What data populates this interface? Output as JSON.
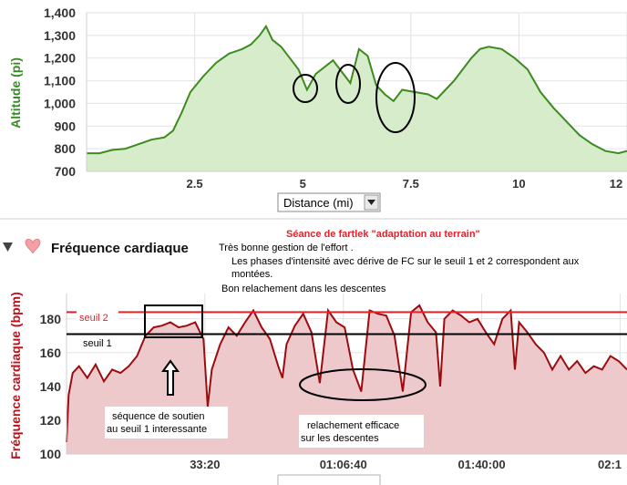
{
  "colors": {
    "altitude_line": "#3d8b1e",
    "altitude_fill": "#d6eccb",
    "hr_line": "#9e0b0f",
    "hr_fill": "#edc9cb",
    "seuil2": "#e8202a",
    "seuil1": "#000000",
    "grid": "#e2e2e2"
  },
  "section": {
    "title": "Fréquence cardiaque",
    "collapse_icon": "triangle-down-icon",
    "heart_icon": "heart-icon"
  },
  "dropdown": {
    "label": "Distance (mi)",
    "icon": "dropdown-arrow-icon"
  },
  "notes": {
    "title": "Séance de fartlek  \"adaptation au terrain\"",
    "line1": "Très bonne gestion de l'effort .",
    "line2": "Les phases d'intensité avec dérive de FC sur le seuil 1 et 2 correspondent aux",
    "line3": "montées.",
    "line4": "Bon relachement dans les descentes"
  },
  "annotations": {
    "soutien_line1": "séquence de soutien",
    "soutien_line2": "au seuil 1 interessante",
    "relach_line1": "relachement efficace",
    "relach_line2": "sur les descentes"
  },
  "chart_data": [
    {
      "type": "area",
      "ylabel": "Altitude (pi)",
      "xlabel": "Distance (mi)",
      "xlim": [
        0,
        12.5
      ],
      "ylim": [
        700,
        1400
      ],
      "yticks": [
        "700",
        "800",
        "900",
        "1,000",
        "1,100",
        "1,200",
        "1,300",
        "1,400"
      ],
      "xticks": [
        "2.5",
        "5",
        "7.5",
        "10",
        "12"
      ],
      "xtick_values": [
        2.5,
        5,
        7.5,
        10,
        12.5
      ],
      "ytick_values": [
        700,
        800,
        900,
        1000,
        1100,
        1200,
        1300,
        1400
      ],
      "series": [
        {
          "x": [
            0,
            0.3,
            0.6,
            0.9,
            1.2,
            1.5,
            1.8,
            2.0,
            2.2,
            2.4,
            2.7,
            3.0,
            3.3,
            3.6,
            3.8,
            4.0,
            4.15,
            4.3,
            4.5,
            4.7,
            4.9,
            5.1,
            5.3,
            5.5,
            5.7,
            5.9,
            6.1,
            6.3,
            6.5,
            6.7,
            6.9,
            7.1,
            7.3,
            7.6,
            7.9,
            8.1,
            8.3,
            8.5,
            8.7,
            8.9,
            9.1,
            9.3,
            9.6,
            9.9,
            10.2,
            10.5,
            10.8,
            11.1,
            11.4,
            11.7,
            12.0,
            12.3,
            12.5
          ],
          "y": [
            780,
            780,
            795,
            800,
            820,
            840,
            850,
            880,
            960,
            1050,
            1120,
            1180,
            1220,
            1240,
            1260,
            1300,
            1340,
            1280,
            1250,
            1200,
            1150,
            1060,
            1130,
            1160,
            1190,
            1140,
            1090,
            1240,
            1210,
            1080,
            1040,
            1010,
            1060,
            1050,
            1040,
            1020,
            1060,
            1100,
            1150,
            1200,
            1240,
            1250,
            1240,
            1200,
            1150,
            1050,
            980,
            920,
            860,
            820,
            790,
            780,
            790
          ]
        }
      ]
    },
    {
      "type": "line",
      "ylabel": "Fréquence cardiaque (bpm)",
      "xlabel": "",
      "xticks": [
        "33:20",
        "01:06:40",
        "01:40:00",
        "02:1"
      ],
      "xtick_values": [
        33.33,
        66.67,
        100.0,
        133.33
      ],
      "xlim": [
        0,
        135
      ],
      "ylim": [
        100,
        195
      ],
      "yticks": [
        "100",
        "120",
        "140",
        "160",
        "180"
      ],
      "ytick_values": [
        100,
        120,
        140,
        160,
        180
      ],
      "reference_lines": [
        {
          "name": "seuil 2",
          "value": 184
        },
        {
          "name": "seuil 1",
          "value": 171
        }
      ],
      "series": [
        {
          "x": [
            0,
            0.5,
            1.5,
            3,
            5,
            7,
            9,
            11,
            13,
            15,
            17,
            19,
            21,
            23,
            25,
            27,
            29,
            31,
            33,
            34,
            35,
            37,
            39,
            41,
            43,
            45,
            47,
            49,
            51,
            52,
            53,
            55,
            57,
            59,
            61,
            63,
            65,
            67,
            69,
            71,
            73,
            75,
            77,
            79,
            81,
            83,
            85,
            87,
            89,
            90,
            91,
            93,
            95,
            97,
            99,
            101,
            103,
            105,
            107,
            108,
            109,
            111,
            113,
            115,
            117,
            119,
            121,
            123,
            125,
            127,
            129,
            131,
            133,
            135
          ],
          "y": [
            107,
            135,
            148,
            152,
            145,
            153,
            143,
            150,
            148,
            152,
            158,
            170,
            175,
            176,
            178,
            175,
            176,
            178,
            168,
            128,
            150,
            165,
            175,
            170,
            178,
            185,
            175,
            168,
            152,
            145,
            165,
            176,
            183,
            172,
            142,
            185,
            178,
            175,
            150,
            137,
            185,
            183,
            182,
            170,
            137,
            184,
            188,
            178,
            172,
            140,
            180,
            185,
            182,
            178,
            180,
            172,
            165,
            180,
            185,
            150,
            178,
            172,
            165,
            160,
            150,
            158,
            150,
            155,
            148,
            152,
            150,
            158,
            155,
            150
          ]
        }
      ]
    }
  ]
}
